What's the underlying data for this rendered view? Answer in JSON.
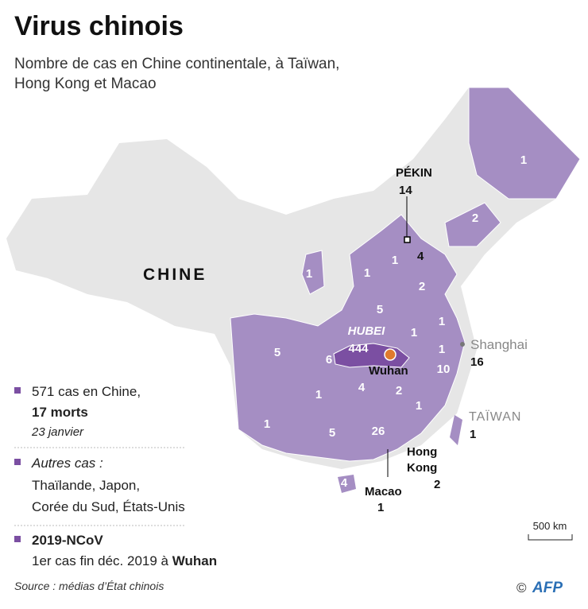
{
  "header": {
    "title": "Virus chinois",
    "subtitle_line1": "Nombre de cas en Chine continentale, à Taïwan,",
    "subtitle_line2": "Hong Kong et Macao"
  },
  "map": {
    "country_label": "CHINE",
    "province_cases": [
      "1",
      "2",
      "1",
      "1",
      "1",
      "2",
      "5",
      "1",
      "1",
      "1",
      "5",
      "6",
      "4",
      "2",
      "1",
      "10",
      "1",
      "1",
      "5",
      "26",
      "4"
    ],
    "hubei": {
      "name": "HUBEI",
      "cases": "444",
      "city": "Wuhan"
    },
    "beijing": {
      "name": "PÉKIN",
      "cases": "14"
    },
    "tianjin": {
      "cases": "4"
    },
    "shanghai": {
      "name": "Shanghai",
      "cases": "16"
    },
    "taiwan": {
      "name": "TAÏWAN",
      "cases": "1"
    },
    "hongkong": {
      "name_line1": "Hong",
      "name_line2": "Kong",
      "cases": "2"
    },
    "macao": {
      "name": "Macao",
      "cases": "1"
    },
    "scale": "500 km"
  },
  "legend": {
    "china_line1": "571 cas en Chine,",
    "china_line2": "17 morts",
    "date": "23 janvier",
    "other_title": "Autres cas :",
    "other_line1": "Thaïlande, Japon,",
    "other_line2": "Corée du Sud, États-Unis",
    "virus_name": "2019-NCoV",
    "first_case": "1er cas fin déc. 2019 à",
    "first_case_city": "Wuhan"
  },
  "footer": {
    "source": "Source : médias d’État chinois",
    "copyright": "©",
    "agency": "AFP"
  }
}
